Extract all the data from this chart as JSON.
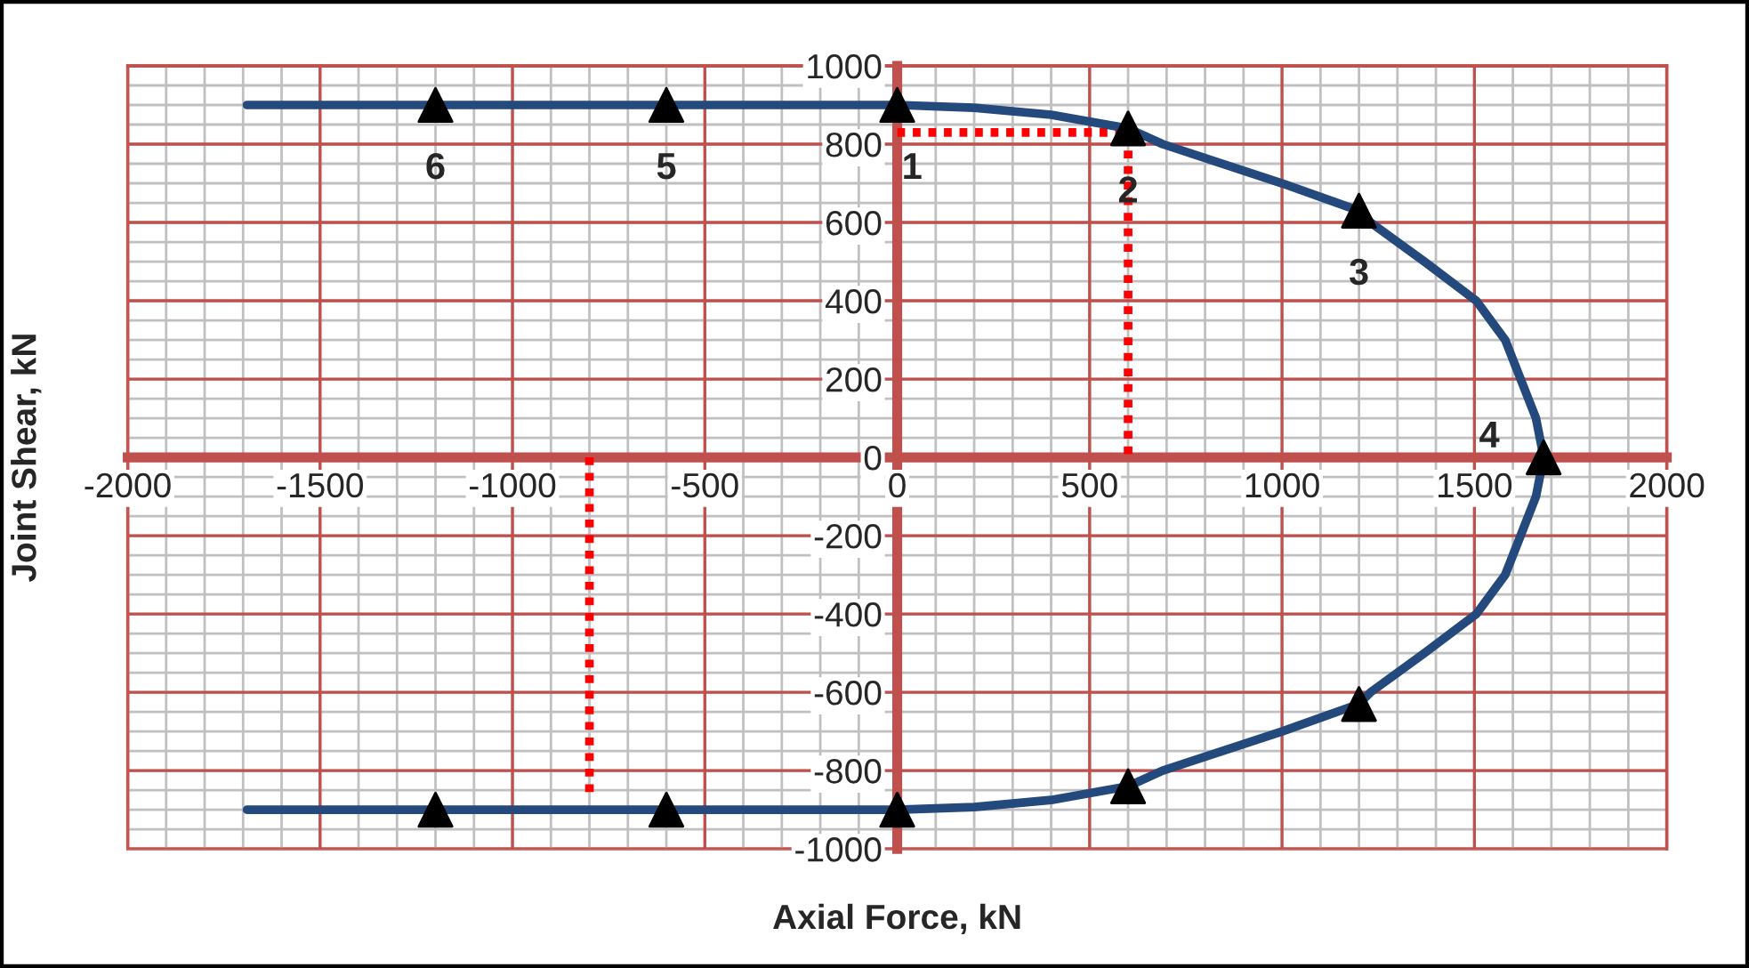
{
  "chart_data": {
    "type": "line",
    "xlabel": "Axial Force, kN",
    "ylabel": "Joint Shear, kN",
    "xlim": [
      -2000,
      2000
    ],
    "ylim": [
      -1000,
      1000
    ],
    "xticks": [
      -2000,
      -1500,
      -1000,
      -500,
      0,
      500,
      1000,
      1500,
      2000
    ],
    "yticks": [
      -1000,
      -800,
      -600,
      -400,
      -200,
      0,
      200,
      400,
      600,
      800,
      1000
    ],
    "grid": true,
    "legend": false,
    "series": [
      {
        "color": "#23497d",
        "marker": "none",
        "line_style": "solid",
        "x": [
          -1690,
          -1200,
          -600,
          0,
          200,
          400,
          600,
          690,
          1000,
          1200,
          1230,
          1370,
          1505,
          1580,
          1620,
          1660,
          1680,
          1660,
          1620,
          1580,
          1505,
          1370,
          1230,
          1200,
          1000,
          690,
          600,
          400,
          200,
          0,
          -600,
          -1200,
          -1690
        ],
        "values": [
          900,
          900,
          900,
          900,
          893,
          875,
          840,
          800,
          700,
          630,
          600,
          500,
          400,
          300,
          200,
          100,
          0,
          -100,
          -200,
          -300,
          -400,
          -500,
          -600,
          -630,
          -700,
          -800,
          -840,
          -875,
          -893,
          -900,
          -900,
          -900,
          -900
        ]
      },
      {
        "type": "scatter",
        "color": "#000000",
        "marker": "triangle",
        "x": [
          -1200,
          -600,
          0,
          600,
          1200,
          1680,
          1200,
          600,
          0,
          -600,
          -1200
        ],
        "values": [
          900,
          900,
          900,
          840,
          630,
          0,
          -630,
          -840,
          -900,
          -900,
          -900
        ]
      },
      {
        "color": "#ff0000",
        "marker": "none",
        "line_style": "dotted",
        "x": [
          0,
          600,
          600
        ],
        "values": [
          830,
          830,
          0
        ]
      },
      {
        "color": "#ff0000",
        "marker": "none",
        "line_style": "dotted",
        "x": [
          -800,
          -800
        ],
        "values": [
          0,
          -870
        ]
      }
    ],
    "annotations": [
      {
        "text": "1",
        "x": 0,
        "y": 900
      },
      {
        "text": "2",
        "x": 600,
        "y": 840
      },
      {
        "text": "3",
        "x": 1200,
        "y": 630
      },
      {
        "text": "4",
        "x": 1680,
        "y": 0
      },
      {
        "text": "5",
        "x": -600,
        "y": 900
      },
      {
        "text": "6",
        "x": -1200,
        "y": 900
      }
    ]
  }
}
